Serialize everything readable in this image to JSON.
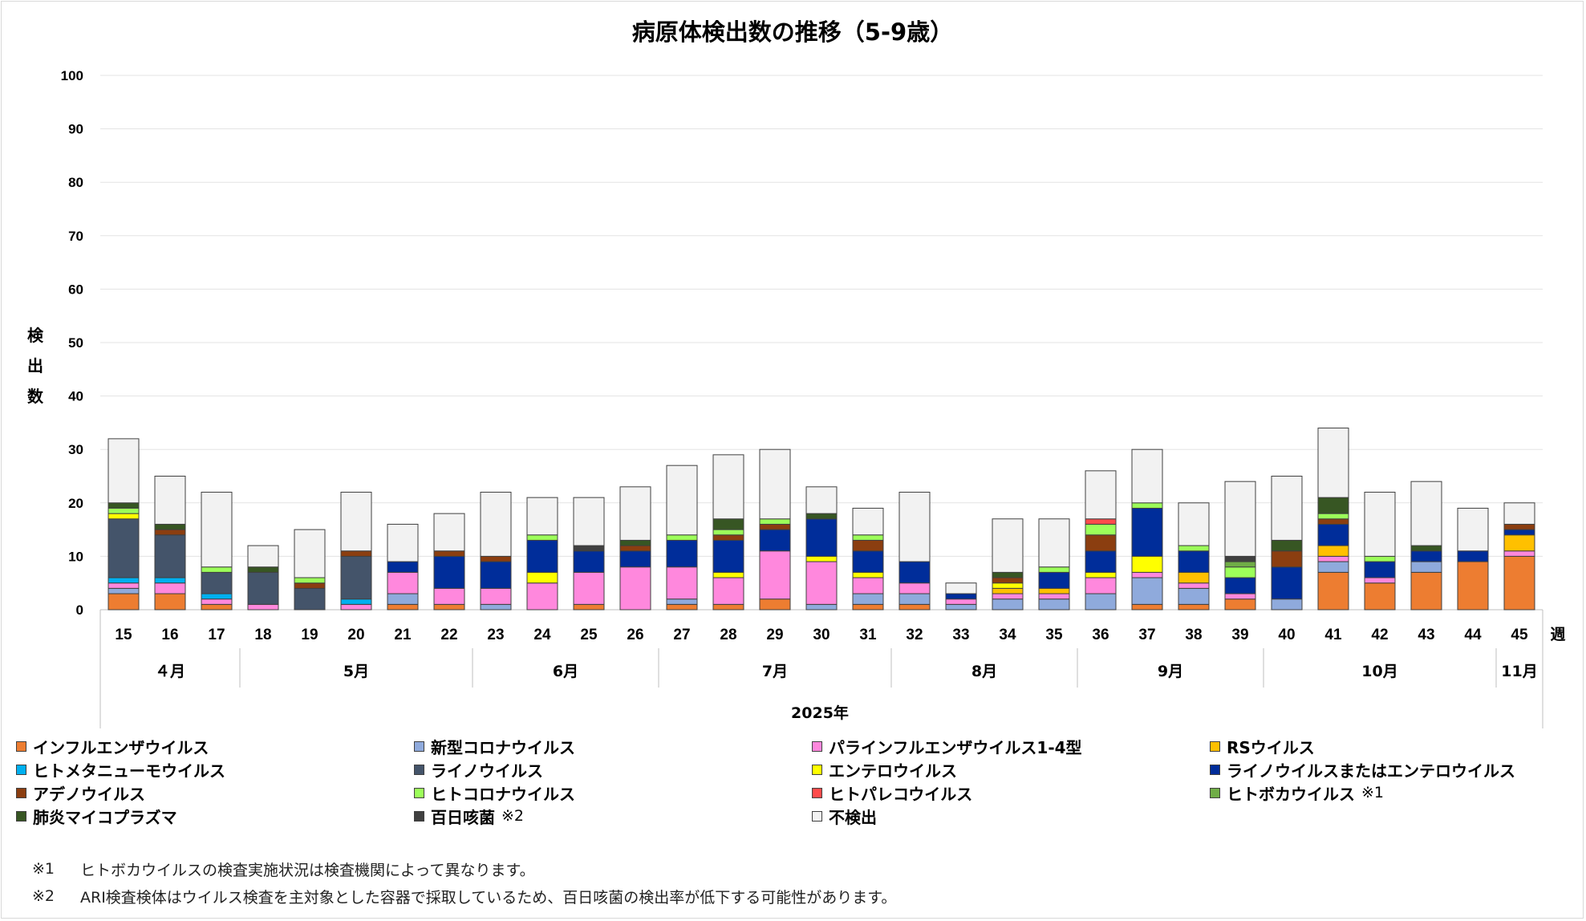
{
  "chart_data": {
    "type": "bar",
    "stacked": true,
    "title": "病原体検出数の推移（5-9歳）",
    "ylabel": "検出数",
    "xlabel": "2025年",
    "x_unit": "週",
    "ylim": [
      0,
      100
    ],
    "yticks": [
      "0",
      "10",
      "20",
      "30",
      "40",
      "50",
      "60",
      "70",
      "80",
      "90",
      "100"
    ],
    "grid": true,
    "legend_position": "bottom",
    "categories": [
      "15",
      "16",
      "17",
      "18",
      "19",
      "20",
      "21",
      "22",
      "23",
      "24",
      "25",
      "26",
      "27",
      "28",
      "29",
      "30",
      "31",
      "32",
      "33",
      "34",
      "35",
      "36",
      "37",
      "38",
      "39",
      "40",
      "41",
      "42",
      "43",
      "44",
      "45"
    ],
    "months": [
      {
        "label": "４月",
        "first": 0,
        "last": 2
      },
      {
        "label": "5月",
        "first": 3,
        "last": 7
      },
      {
        "label": "6月",
        "first": 8,
        "last": 11
      },
      {
        "label": "7月",
        "first": 12,
        "last": 16
      },
      {
        "label": "8月",
        "first": 17,
        "last": 20
      },
      {
        "label": "9月",
        "first": 21,
        "last": 24
      },
      {
        "label": "10月",
        "first": 25,
        "last": 29
      },
      {
        "label": "11月",
        "first": 30,
        "last": 30
      }
    ],
    "series": [
      {
        "name": "インフルエンザウイルス",
        "color": "#ed7d31",
        "values": [
          3,
          3,
          1,
          0,
          0,
          0,
          1,
          1,
          0,
          0,
          1,
          0,
          1,
          1,
          2,
          0,
          1,
          1,
          0,
          0,
          0,
          0,
          1,
          1,
          2,
          0,
          7,
          5,
          7,
          9,
          10
        ]
      },
      {
        "name": "新型コロナウイルス",
        "color": "#8faadc",
        "values": [
          1,
          0,
          0,
          0,
          0,
          0,
          2,
          0,
          1,
          0,
          0,
          0,
          1,
          0,
          0,
          1,
          2,
          2,
          1,
          2,
          2,
          3,
          5,
          3,
          0,
          2,
          2,
          0,
          2,
          0,
          0
        ]
      },
      {
        "name": "パラインフルエンザウイルス1-4型",
        "color": "#ff88dd",
        "values": [
          1,
          2,
          1,
          1,
          0,
          1,
          4,
          3,
          3,
          5,
          6,
          8,
          6,
          5,
          9,
          8,
          3,
          2,
          1,
          1,
          1,
          3,
          1,
          1,
          1,
          0,
          1,
          1,
          0,
          0,
          1
        ]
      },
      {
        "name": "RSウイルス",
        "color": "#ffc000",
        "values": [
          0,
          0,
          0,
          0,
          0,
          0,
          0,
          0,
          0,
          0,
          0,
          0,
          0,
          0,
          0,
          0,
          0,
          0,
          0,
          1,
          1,
          0,
          0,
          2,
          0,
          0,
          2,
          0,
          0,
          0,
          3
        ]
      },
      {
        "name": "ヒトメタニューモウイルス",
        "color": "#00b0f0",
        "values": [
          1,
          1,
          1,
          0,
          0,
          1,
          0,
          0,
          0,
          0,
          0,
          0,
          0,
          0,
          0,
          0,
          0,
          0,
          0,
          0,
          0,
          0,
          0,
          0,
          0,
          0,
          0,
          0,
          0,
          0,
          0
        ]
      },
      {
        "name": "ライノウイルス",
        "color": "#44546a",
        "values": [
          11,
          8,
          4,
          6,
          4,
          8,
          0,
          0,
          0,
          0,
          0,
          0,
          0,
          0,
          0,
          0,
          0,
          0,
          0,
          0,
          0,
          0,
          0,
          0,
          0,
          0,
          0,
          0,
          0,
          0,
          0
        ]
      },
      {
        "name": "エンテロウイルス",
        "color": "#ffff00",
        "values": [
          1,
          0,
          0,
          0,
          0,
          0,
          0,
          0,
          0,
          2,
          0,
          0,
          0,
          1,
          0,
          1,
          1,
          0,
          0,
          1,
          0,
          1,
          3,
          0,
          0,
          0,
          0,
          0,
          0,
          0,
          0
        ]
      },
      {
        "name": "ライノウイルスまたはエンテロウイルス",
        "color": "#002d9a",
        "values": [
          0,
          0,
          0,
          0,
          0,
          0,
          2,
          6,
          5,
          6,
          4,
          3,
          5,
          6,
          4,
          7,
          4,
          4,
          1,
          0,
          3,
          4,
          9,
          4,
          3,
          6,
          4,
          3,
          2,
          2,
          1
        ]
      },
      {
        "name": "アデノウイルス",
        "color": "#8b3e10",
        "values": [
          0,
          1,
          0,
          0,
          1,
          1,
          0,
          1,
          1,
          0,
          0,
          1,
          0,
          1,
          1,
          0,
          2,
          0,
          0,
          1,
          0,
          3,
          0,
          0,
          0,
          3,
          1,
          0,
          0,
          0,
          1
        ]
      },
      {
        "name": "ヒトコロナウイルス",
        "color": "#9cff5a",
        "values": [
          1,
          0,
          1,
          0,
          1,
          0,
          0,
          0,
          0,
          1,
          0,
          0,
          1,
          1,
          1,
          0,
          1,
          0,
          0,
          0,
          1,
          2,
          1,
          1,
          2,
          0,
          1,
          1,
          0,
          0,
          0
        ]
      },
      {
        "name": "ヒトパレコウイルス",
        "color": "#ff4b4b",
        "values": [
          0,
          0,
          0,
          0,
          0,
          0,
          0,
          0,
          0,
          0,
          0,
          0,
          0,
          0,
          0,
          0,
          0,
          0,
          0,
          0,
          0,
          1,
          0,
          0,
          0,
          0,
          0,
          0,
          0,
          0,
          0
        ]
      },
      {
        "name": "ヒトボカウイルス",
        "color": "#70ad47",
        "values": [
          0,
          0,
          0,
          0,
          0,
          0,
          0,
          0,
          0,
          0,
          0,
          0,
          0,
          0,
          0,
          0,
          0,
          0,
          0,
          0,
          0,
          0,
          0,
          0,
          1,
          0,
          0,
          0,
          0,
          0,
          0
        ]
      },
      {
        "name": "肺炎マイコプラズマ",
        "color": "#375623",
        "values": [
          1,
          1,
          0,
          1,
          0,
          0,
          0,
          0,
          0,
          0,
          0,
          1,
          0,
          2,
          0,
          1,
          0,
          0,
          0,
          1,
          0,
          0,
          0,
          0,
          0,
          2,
          3,
          0,
          1,
          0,
          0
        ]
      },
      {
        "name": "百日咳菌",
        "color": "#404040",
        "values": [
          0,
          0,
          0,
          0,
          0,
          0,
          0,
          0,
          0,
          0,
          1,
          0,
          0,
          0,
          0,
          0,
          0,
          0,
          0,
          0,
          0,
          0,
          0,
          0,
          1,
          0,
          0,
          0,
          0,
          0,
          0
        ]
      },
      {
        "name": "不検出",
        "color": "#f2f2f2",
        "values": [
          12,
          9,
          14,
          4,
          9,
          11,
          7,
          7,
          12,
          7,
          9,
          10,
          13,
          12,
          13,
          5,
          5,
          13,
          2,
          10,
          9,
          9,
          10,
          8,
          14,
          12,
          13,
          12,
          12,
          8,
          4
        ]
      }
    ]
  },
  "legend": [
    {
      "label": "インフルエンザウイルス",
      "color": "#ed7d31",
      "note": ""
    },
    {
      "label": "新型コロナウイルス",
      "color": "#8faadc",
      "note": ""
    },
    {
      "label": "パラインフルエンザウイルス1-4型",
      "color": "#ff88dd",
      "note": ""
    },
    {
      "label": "RSウイルス",
      "color": "#ffc000",
      "note": ""
    },
    {
      "label": "ヒトメタニューモウイルス",
      "color": "#00b0f0",
      "note": ""
    },
    {
      "label": "ライノウイルス",
      "color": "#44546a",
      "note": ""
    },
    {
      "label": "エンテロウイルス",
      "color": "#ffff00",
      "note": ""
    },
    {
      "label": "ライノウイルスまたはエンテロウイルス",
      "color": "#002d9a",
      "note": ""
    },
    {
      "label": "アデノウイルス",
      "color": "#8b3e10",
      "note": ""
    },
    {
      "label": "ヒトコロナウイルス",
      "color": "#9cff5a",
      "note": ""
    },
    {
      "label": "ヒトパレコウイルス",
      "color": "#ff4b4b",
      "note": ""
    },
    {
      "label": "ヒトボカウイルス",
      "color": "#70ad47",
      "note": "※1"
    },
    {
      "label": "肺炎マイコプラズマ",
      "color": "#375623",
      "note": ""
    },
    {
      "label": "百日咳菌",
      "color": "#404040",
      "note": "※2"
    },
    {
      "label": "不検出",
      "color": "#f2f2f2",
      "note": ""
    }
  ],
  "notes": [
    {
      "mark": "※1",
      "text": "ヒトボカウイルスの検査実施状況は検査機関によって異なります。"
    },
    {
      "mark": "※2",
      "text": "ARI検査検体はウイルス検査を主対象とした容器で採取しているため、百日咳菌の検出率が低下する可能性があります。"
    }
  ]
}
